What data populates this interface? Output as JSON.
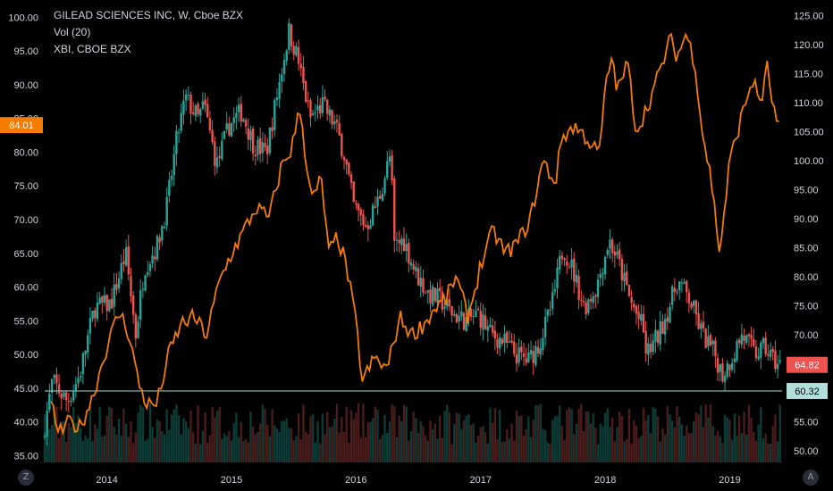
{
  "legend": {
    "symbol_line": "GILEAD SCIENCES INC, W, Cboe BZX",
    "volume_line": "Vol (20)",
    "compare_line": "XBI, CBOE BZX"
  },
  "buttons": {
    "left": "Z",
    "right": "A"
  },
  "colors": {
    "background": "#000000",
    "up_candle": "#26a69a",
    "down_candle": "#ef5350",
    "compare_line": "#f57c00",
    "hline": "#80cbc4",
    "axis_text": "#d1d4dc",
    "last_price_left": "#f57c00",
    "last_price_right": "#ef5350",
    "hline_label": "#b2dfdb"
  },
  "chart_data": {
    "type": "candlestick+line",
    "left_axis": {
      "ticks": [
        "35.00",
        "40.00",
        "45.00",
        "50.00",
        "55.00",
        "60.00",
        "65.00",
        "70.00",
        "75.00",
        "80.00",
        "85.00",
        "90.00",
        "95.00",
        "100.00"
      ],
      "range": [
        34,
        101.5
      ]
    },
    "right_axis": {
      "ticks": [
        "50.00",
        "55.00",
        "60.00",
        "65.00",
        "70.00",
        "75.00",
        "80.00",
        "85.00",
        "90.00",
        "95.00",
        "100.00",
        "105.00",
        "110.00",
        "115.00",
        "120.00",
        "125.00"
      ],
      "range": [
        48,
        126.5
      ]
    },
    "x_ticks": [
      "2014",
      "2015",
      "2016",
      "2017",
      "2018",
      "2019"
    ],
    "x_range": [
      2013.5,
      2019.42
    ],
    "labels": {
      "left_last": "84.01",
      "right_last": "64.82",
      "hline": "60.32"
    },
    "hline_value": 60.32,
    "gild_close_anchors": [
      [
        2013.5,
        37.5
      ],
      [
        2013.58,
        46.0
      ],
      [
        2013.7,
        43.0
      ],
      [
        2013.8,
        47.0
      ],
      [
        2013.92,
        57.0
      ],
      [
        2014.05,
        57.5
      ],
      [
        2014.17,
        65.0
      ],
      [
        2014.25,
        53.0
      ],
      [
        2014.32,
        63.0
      ],
      [
        2014.42,
        66.0
      ],
      [
        2014.5,
        72.0
      ],
      [
        2014.58,
        82.0
      ],
      [
        2014.65,
        88.0
      ],
      [
        2014.75,
        85.0
      ],
      [
        2014.8,
        87.0
      ],
      [
        2014.9,
        78.0
      ],
      [
        2015.0,
        84.0
      ],
      [
        2015.1,
        86.0
      ],
      [
        2015.2,
        81.0
      ],
      [
        2015.3,
        80.0
      ],
      [
        2015.4,
        90.0
      ],
      [
        2015.48,
        98.0
      ],
      [
        2015.55,
        94.0
      ],
      [
        2015.65,
        85.0
      ],
      [
        2015.75,
        87.0
      ],
      [
        2015.85,
        84.0
      ],
      [
        2015.92,
        80.0
      ],
      [
        2016.0,
        72.0
      ],
      [
        2016.1,
        69.0
      ],
      [
        2016.2,
        73.0
      ],
      [
        2016.3,
        80.0
      ],
      [
        2016.32,
        66.0
      ],
      [
        2016.4,
        67.0
      ],
      [
        2016.5,
        62.0
      ],
      [
        2016.6,
        59.0
      ],
      [
        2016.7,
        58.0
      ],
      [
        2016.8,
        56.0
      ],
      [
        2016.9,
        55.0
      ],
      [
        2017.0,
        56.0
      ],
      [
        2017.1,
        53.0
      ],
      [
        2017.2,
        52.0
      ],
      [
        2017.3,
        50.0
      ],
      [
        2017.4,
        49.0
      ],
      [
        2017.5,
        52.0
      ],
      [
        2017.6,
        58.0
      ],
      [
        2017.68,
        66.0
      ],
      [
        2017.75,
        63.0
      ],
      [
        2017.85,
        57.0
      ],
      [
        2017.95,
        60.0
      ],
      [
        2018.05,
        67.0
      ],
      [
        2018.12,
        64.0
      ],
      [
        2018.22,
        58.0
      ],
      [
        2018.32,
        54.0
      ],
      [
        2018.35,
        50.0
      ],
      [
        2018.45,
        53.0
      ],
      [
        2018.55,
        58.0
      ],
      [
        2018.6,
        61.0
      ],
      [
        2018.7,
        58.0
      ],
      [
        2018.8,
        53.0
      ],
      [
        2018.9,
        50.0
      ],
      [
        2018.96,
        47.0
      ],
      [
        2019.02,
        49.0
      ],
      [
        2019.12,
        53.0
      ],
      [
        2019.22,
        50.0
      ],
      [
        2019.3,
        51.0
      ],
      [
        2019.38,
        49.0
      ],
      [
        2019.41,
        48.5
      ]
    ],
    "xbi_close_anchors": [
      [
        2013.55,
        58.0
      ],
      [
        2013.62,
        53.0
      ],
      [
        2013.7,
        55.0
      ],
      [
        2013.78,
        54.0
      ],
      [
        2013.88,
        59.0
      ],
      [
        2014.0,
        68.0
      ],
      [
        2014.1,
        74.0
      ],
      [
        2014.18,
        70.0
      ],
      [
        2014.25,
        62.0
      ],
      [
        2014.32,
        58.0
      ],
      [
        2014.4,
        58.0
      ],
      [
        2014.5,
        67.0
      ],
      [
        2014.6,
        72.0
      ],
      [
        2014.7,
        73.0
      ],
      [
        2014.8,
        70.0
      ],
      [
        2014.9,
        79.0
      ],
      [
        2015.0,
        84.0
      ],
      [
        2015.1,
        88.0
      ],
      [
        2015.2,
        92.0
      ],
      [
        2015.3,
        90.0
      ],
      [
        2015.4,
        99.0
      ],
      [
        2015.48,
        102.0
      ],
      [
        2015.55,
        109.0
      ],
      [
        2015.6,
        100.0
      ],
      [
        2015.65,
        93.0
      ],
      [
        2015.72,
        97.0
      ],
      [
        2015.78,
        84.0
      ],
      [
        2015.85,
        87.0
      ],
      [
        2015.92,
        82.0
      ],
      [
        2016.0,
        72.0
      ],
      [
        2016.05,
        62.0
      ],
      [
        2016.15,
        66.0
      ],
      [
        2016.25,
        64.0
      ],
      [
        2016.35,
        73.0
      ],
      [
        2016.45,
        70.0
      ],
      [
        2016.55,
        72.0
      ],
      [
        2016.65,
        75.0
      ],
      [
        2016.72,
        76.0
      ],
      [
        2016.8,
        80.0
      ],
      [
        2016.9,
        73.0
      ],
      [
        2017.0,
        82.0
      ],
      [
        2017.1,
        88.0
      ],
      [
        2017.2,
        84.0
      ],
      [
        2017.3,
        86.0
      ],
      [
        2017.4,
        90.0
      ],
      [
        2017.5,
        100.0
      ],
      [
        2017.6,
        96.0
      ],
      [
        2017.65,
        104.0
      ],
      [
        2017.75,
        106.0
      ],
      [
        2017.85,
        104.0
      ],
      [
        2017.95,
        101.0
      ],
      [
        2018.0,
        112.0
      ],
      [
        2018.05,
        118.0
      ],
      [
        2018.1,
        112.0
      ],
      [
        2018.18,
        117.0
      ],
      [
        2018.25,
        105.0
      ],
      [
        2018.35,
        110.0
      ],
      [
        2018.45,
        116.0
      ],
      [
        2018.52,
        121.0
      ],
      [
        2018.58,
        118.0
      ],
      [
        2018.65,
        122.0
      ],
      [
        2018.72,
        117.0
      ],
      [
        2018.78,
        105.0
      ],
      [
        2018.85,
        97.0
      ],
      [
        2018.92,
        84.0
      ],
      [
        2019.0,
        100.0
      ],
      [
        2019.1,
        108.0
      ],
      [
        2019.18,
        114.0
      ],
      [
        2019.25,
        110.0
      ],
      [
        2019.3,
        116.0
      ],
      [
        2019.36,
        108.0
      ],
      [
        2019.41,
        104.5
      ]
    ],
    "volume": {
      "typical_height_fraction": 0.1,
      "panel_bottom_value": 34
    }
  }
}
